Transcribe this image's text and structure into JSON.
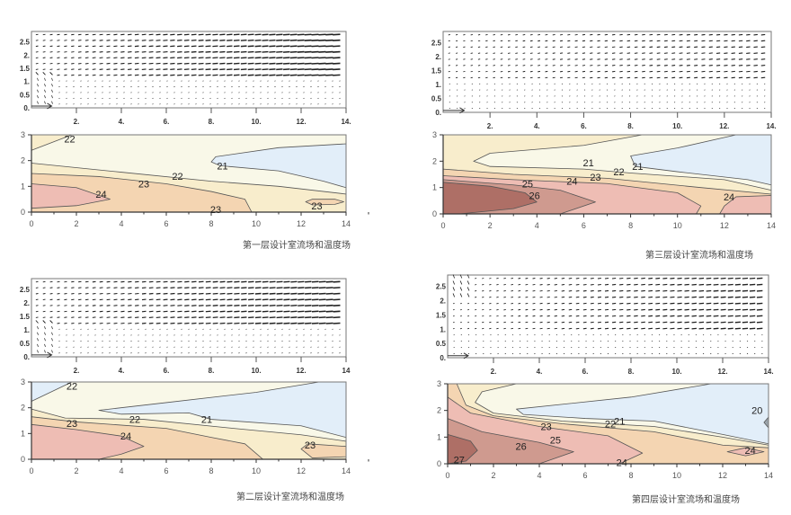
{
  "chart_data": [
    {
      "type": "contour",
      "caption": "第一层设计室流场和温度场",
      "vector_plot": {
        "x_ticks": [
          "2.",
          "4.",
          "6.",
          "8.",
          "10.",
          "12.",
          "14."
        ],
        "y_ticks": [
          "0.",
          "0.5",
          "1.",
          "1.5",
          "2.",
          "2.5"
        ]
      },
      "contour_plot": {
        "x_ticks": [
          "0",
          "2",
          "4",
          "6",
          "8",
          "10",
          "12",
          "14"
        ],
        "y_ticks": [
          "0",
          "1",
          "2",
          "3"
        ],
        "xlim": [
          0,
          14
        ],
        "ylim": [
          0,
          3
        ]
      },
      "contour_labels": [
        "22",
        "21",
        "22",
        "23",
        "24",
        "23",
        "23"
      ]
    },
    {
      "type": "contour",
      "caption": "第二层设计室流场和温度场",
      "vector_plot": {
        "x_ticks": [
          "2.",
          "4.",
          "6.",
          "8.",
          "10.",
          "12.",
          "14"
        ],
        "y_ticks": [
          "0.",
          "0.5",
          "1.",
          "1.5",
          "2.",
          "2.5"
        ]
      },
      "contour_plot": {
        "x_ticks": [
          "0",
          "2",
          "4",
          "6",
          "8",
          "10",
          "12",
          "14"
        ],
        "y_ticks": [
          "0",
          "1",
          "2",
          "3"
        ],
        "xlim": [
          0,
          14
        ],
        "ylim": [
          0,
          3
        ]
      },
      "contour_labels": [
        "22",
        "23",
        "22",
        "21",
        "24",
        "23"
      ]
    },
    {
      "type": "contour",
      "caption": "第三层设计室流场和温度场",
      "vector_plot": {
        "x_ticks": [
          "2.",
          "4.",
          "6.",
          "8.",
          "10.",
          "12.",
          "14."
        ],
        "y_ticks": [
          "0.",
          "0.5",
          "1.",
          "1.5",
          "2.",
          "2.5"
        ]
      },
      "contour_plot": {
        "x_ticks": [
          "0",
          "2",
          "4",
          "6",
          "8",
          "10",
          "12",
          "14"
        ],
        "y_ticks": [
          "0",
          "1",
          "2",
          "3"
        ],
        "xlim": [
          0,
          14
        ],
        "ylim": [
          0,
          3
        ]
      },
      "contour_labels": [
        "21",
        "21",
        "22",
        "23",
        "24",
        "25",
        "26",
        "24"
      ]
    },
    {
      "type": "contour",
      "caption": "第四层设计室流场和温度场",
      "vector_plot": {
        "x_ticks": [
          "2.",
          "4.",
          "6.",
          "8.",
          "10.",
          "12.",
          "14."
        ],
        "y_ticks": [
          "0.",
          "0.5",
          "1.",
          "1.5",
          "2.",
          "2.5"
        ]
      },
      "contour_plot": {
        "x_ticks": [
          "0",
          "2",
          "4",
          "6",
          "8",
          "10",
          "12",
          "14"
        ],
        "y_ticks": [
          "0",
          "1",
          "2",
          "3"
        ],
        "xlim": [
          0,
          14
        ],
        "ylim": [
          0,
          3
        ]
      },
      "contour_labels": [
        "20",
        "21",
        "22",
        "23",
        "25",
        "26",
        "24",
        "24",
        "27"
      ]
    }
  ],
  "colors": {
    "below_21": "#e2eef9",
    "21_22": "#f9f8e8",
    "22_23": "#f8edcc",
    "23_24": "#f4d5b2",
    "24_25": "#eebdb4",
    "25_26": "#cf9a8f",
    "above_26": "#ae6f66"
  }
}
